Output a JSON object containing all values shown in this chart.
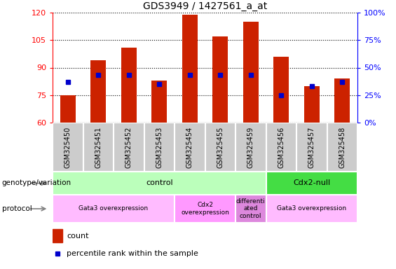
{
  "title": "GDS3949 / 1427561_a_at",
  "samples": [
    "GSM325450",
    "GSM325451",
    "GSM325452",
    "GSM325453",
    "GSM325454",
    "GSM325455",
    "GSM325459",
    "GSM325456",
    "GSM325457",
    "GSM325458"
  ],
  "count_values": [
    75,
    94,
    101,
    83,
    119,
    107,
    115,
    96,
    80,
    84
  ],
  "percentile_values": [
    37,
    43,
    43,
    35,
    43,
    43,
    43,
    25,
    33,
    37
  ],
  "left_ylim": [
    60,
    120
  ],
  "right_ylim": [
    0,
    100
  ],
  "left_yticks": [
    60,
    75,
    90,
    105,
    120
  ],
  "right_yticks": [
    0,
    25,
    50,
    75,
    100
  ],
  "bar_color": "#cc2200",
  "dot_color": "#0000cc",
  "bar_bottom": 60,
  "genotype_groups": [
    {
      "label": "control",
      "start": 0,
      "end": 7,
      "color": "#bbffbb"
    },
    {
      "label": "Cdx2-null",
      "start": 7,
      "end": 10,
      "color": "#44dd44"
    }
  ],
  "protocol_groups": [
    {
      "label": "Gata3 overexpression",
      "start": 0,
      "end": 4,
      "color": "#ffbbff"
    },
    {
      "label": "Cdx2\noverexpression",
      "start": 4,
      "end": 6,
      "color": "#ff99ff"
    },
    {
      "label": "differenti\nated\ncontrol",
      "start": 6,
      "end": 7,
      "color": "#dd88dd"
    },
    {
      "label": "Gata3 overexpression",
      "start": 7,
      "end": 10,
      "color": "#ffbbff"
    }
  ],
  "left_label_genotype": "genotype/variation",
  "left_label_protocol": "protocol",
  "legend_count": "count",
  "legend_percentile": "percentile rank within the sample",
  "xtick_bg_color": "#cccccc"
}
